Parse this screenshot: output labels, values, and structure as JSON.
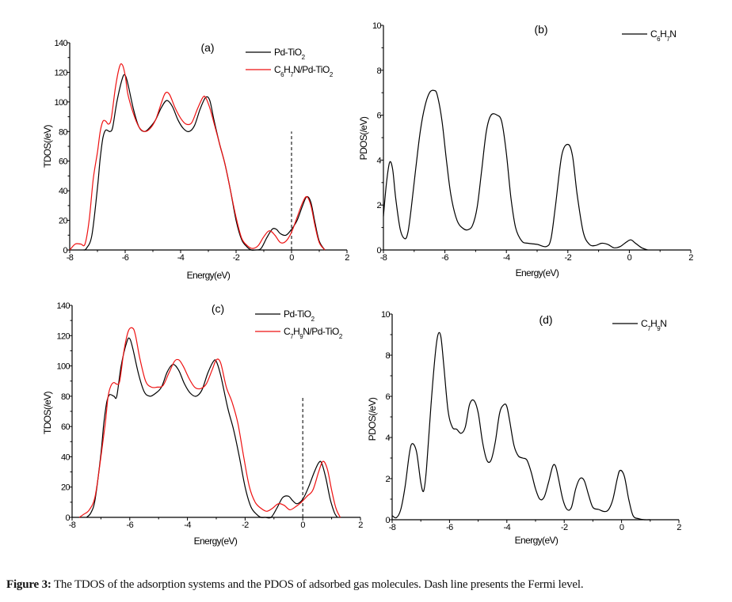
{
  "caption": {
    "label": "Figure 3:",
    "text": " The TDOS of the adsorption systems and the PDOS of adsorbed gas molecules. Dash line presents the Fermi level."
  },
  "chart_data": [
    {
      "id": "a",
      "type": "line",
      "panel_label": "(a)",
      "xlabel": "Energy(eV)",
      "ylabel": "TDOS(/eV)",
      "xlim": [
        -8,
        2
      ],
      "ylim": [
        0,
        140
      ],
      "xticks": [
        -8,
        -6,
        -4,
        -2,
        0,
        2
      ],
      "yticks": [
        0,
        20,
        40,
        60,
        80,
        100,
        120,
        140
      ],
      "fermi_level": {
        "x": 0,
        "y_top": 80
      },
      "legend_position": "top-right",
      "series": [
        {
          "name": "Pd-TiO2",
          "legend_html": [
            "Pd-TiO",
            "2"
          ],
          "color": "#000000",
          "x": [
            -7.5,
            -7.4,
            -7.2,
            -7.0,
            -6.9,
            -6.8,
            -6.7,
            -6.55,
            -6.45,
            -6.3,
            -6.1,
            -6.0,
            -5.9,
            -5.7,
            -5.5,
            -5.3,
            -5.1,
            -4.9,
            -4.7,
            -4.5,
            -4.3,
            -4.1,
            -3.9,
            -3.7,
            -3.5,
            -3.3,
            -3.1,
            -2.95,
            -2.8,
            -2.6,
            -2.4,
            -2.2,
            -2.0,
            -1.8,
            -1.6,
            -1.45,
            -1.3,
            -1.1,
            -0.9,
            -0.7,
            -0.55,
            -0.4,
            -0.2,
            0.0,
            0.2,
            0.4,
            0.55,
            0.7,
            0.85,
            1.0,
            1.2
          ],
          "y": [
            0,
            1,
            10,
            42,
            62,
            76,
            81,
            80,
            83,
            100,
            116,
            118,
            112,
            95,
            83,
            80,
            83,
            88,
            96,
            101,
            97,
            88,
            82,
            80,
            84,
            95,
            103,
            101,
            88,
            72,
            58,
            40,
            20,
            7,
            2,
            0,
            0,
            1,
            8,
            14,
            14,
            11,
            10,
            14,
            20,
            30,
            36,
            32,
            18,
            6,
            0
          ]
        },
        {
          "name": "C6H7N/Pd-TiO2",
          "legend_html": [
            "C",
            "6",
            "H",
            "7",
            "N/Pd-TiO",
            "2"
          ],
          "color": "#ee1111",
          "x": [
            -8.0,
            -7.8,
            -7.6,
            -7.45,
            -7.3,
            -7.15,
            -7.0,
            -6.9,
            -6.8,
            -6.7,
            -6.6,
            -6.5,
            -6.35,
            -6.2,
            -6.1,
            -6.0,
            -5.9,
            -5.7,
            -5.5,
            -5.3,
            -5.1,
            -4.9,
            -4.7,
            -4.55,
            -4.4,
            -4.2,
            -4.0,
            -3.8,
            -3.6,
            -3.4,
            -3.2,
            -3.1,
            -2.95,
            -2.8,
            -2.6,
            -2.4,
            -2.2,
            -2.0,
            -1.8,
            -1.6,
            -1.4,
            -1.2,
            -1.0,
            -0.8,
            -0.6,
            -0.4,
            -0.2,
            0.0,
            0.2,
            0.4,
            0.55,
            0.7,
            0.85,
            1.0,
            1.2
          ],
          "y": [
            0,
            4,
            4,
            4,
            20,
            48,
            66,
            80,
            87,
            87,
            85,
            89,
            110,
            124,
            125,
            118,
            105,
            92,
            83,
            80,
            82,
            88,
            99,
            106,
            105,
            96,
            89,
            85,
            86,
            95,
            103,
            103,
            96,
            86,
            72,
            58,
            40,
            22,
            8,
            3,
            1,
            3,
            9,
            13,
            10,
            5,
            6,
            12,
            22,
            32,
            36,
            30,
            16,
            5,
            0
          ]
        }
      ]
    },
    {
      "id": "b",
      "type": "line",
      "panel_label": "(b)",
      "xlabel": "Energy(eV)",
      "ylabel": "PDOS(/eV)",
      "xlim": [
        -8,
        2
      ],
      "ylim": [
        0,
        10
      ],
      "xticks": [
        -8,
        -6,
        -4,
        -2,
        0,
        2
      ],
      "yticks": [
        0,
        2,
        4,
        6,
        8,
        10
      ],
      "legend_position": "top-right",
      "series": [
        {
          "name": "C6H7N",
          "legend_html": [
            "C",
            "6",
            "H",
            "7",
            "N"
          ],
          "color": "#000000",
          "x": [
            -8.0,
            -7.9,
            -7.8,
            -7.7,
            -7.6,
            -7.45,
            -7.3,
            -7.2,
            -7.1,
            -6.95,
            -6.8,
            -6.65,
            -6.5,
            -6.35,
            -6.25,
            -6.1,
            -5.95,
            -5.8,
            -5.6,
            -5.4,
            -5.25,
            -5.1,
            -4.95,
            -4.8,
            -4.65,
            -4.5,
            -4.3,
            -4.15,
            -4.0,
            -3.85,
            -3.7,
            -3.5,
            -3.3,
            -3.0,
            -2.7,
            -2.55,
            -2.4,
            -2.2,
            -2.0,
            -1.85,
            -1.7,
            -1.5,
            -1.3,
            -1.1,
            -0.9,
            -0.7,
            -0.5,
            -0.3,
            -0.1,
            0.05,
            0.2,
            0.4,
            0.6
          ],
          "y": [
            1.5,
            3.0,
            3.9,
            3.6,
            2.3,
            0.9,
            0.5,
            0.8,
            1.8,
            3.6,
            5.3,
            6.4,
            7.0,
            7.1,
            6.9,
            5.8,
            4.0,
            2.4,
            1.3,
            0.95,
            0.9,
            1.1,
            1.9,
            3.6,
            5.3,
            6.0,
            6.0,
            5.7,
            4.3,
            2.3,
            1.0,
            0.4,
            0.3,
            0.25,
            0.15,
            0.5,
            2.0,
            4.2,
            4.7,
            4.2,
            2.5,
            0.8,
            0.25,
            0.2,
            0.3,
            0.25,
            0.1,
            0.15,
            0.35,
            0.45,
            0.3,
            0.1,
            0.0
          ]
        }
      ]
    },
    {
      "id": "c",
      "type": "line",
      "panel_label": "(c)",
      "xlabel": "Energy(eV)",
      "ylabel": "TDOS(/eV)",
      "xlim": [
        -8,
        2
      ],
      "ylim": [
        0,
        140
      ],
      "xticks": [
        -8,
        -6,
        -4,
        -2,
        0,
        2
      ],
      "yticks": [
        0,
        20,
        40,
        60,
        80,
        100,
        120,
        140
      ],
      "fermi_level": {
        "x": 0,
        "y_top": 80
      },
      "legend_position": "top-right",
      "series": [
        {
          "name": "Pd-TiO2",
          "legend_html": [
            "Pd-TiO",
            "2"
          ],
          "color": "#000000",
          "x": [
            -7.5,
            -7.35,
            -7.2,
            -7.0,
            -6.9,
            -6.8,
            -6.7,
            -6.55,
            -6.45,
            -6.3,
            -6.1,
            -6.0,
            -5.9,
            -5.7,
            -5.5,
            -5.3,
            -5.1,
            -4.9,
            -4.7,
            -4.5,
            -4.3,
            -4.1,
            -3.9,
            -3.7,
            -3.5,
            -3.3,
            -3.1,
            -3.0,
            -2.85,
            -2.6,
            -2.4,
            -2.2,
            -2.0,
            -1.8,
            -1.6,
            -1.45,
            -1.3,
            -1.1,
            -0.9,
            -0.7,
            -0.5,
            -0.35,
            -0.2,
            0.0,
            0.2,
            0.4,
            0.55,
            0.65,
            0.8,
            0.95,
            1.1,
            1.2
          ],
          "y": [
            0,
            3,
            12,
            42,
            62,
            76,
            81,
            80,
            80,
            100,
            116,
            118,
            112,
            95,
            83,
            80,
            82,
            86,
            96,
            101,
            97,
            88,
            82,
            80,
            84,
            95,
            103,
            103,
            94,
            72,
            58,
            40,
            20,
            7,
            2,
            0,
            0,
            0,
            6,
            13,
            14,
            11,
            9,
            12,
            20,
            30,
            36,
            36,
            26,
            12,
            3,
            0
          ]
        },
        {
          "name": "C7H9N/Pd-TiO2",
          "legend_html": [
            "C",
            "7",
            "H",
            "9",
            "N/Pd-TiO",
            "2"
          ],
          "color": "#ee1111",
          "x": [
            -7.75,
            -7.6,
            -7.4,
            -7.2,
            -7.0,
            -6.85,
            -6.75,
            -6.65,
            -6.55,
            -6.45,
            -6.35,
            -6.2,
            -6.05,
            -5.9,
            -5.8,
            -5.65,
            -5.45,
            -5.25,
            -5.05,
            -4.85,
            -4.65,
            -4.45,
            -4.3,
            -4.15,
            -3.95,
            -3.75,
            -3.55,
            -3.35,
            -3.15,
            -3.0,
            -2.85,
            -2.65,
            -2.45,
            -2.25,
            -2.05,
            -1.85,
            -1.65,
            -1.45,
            -1.25,
            -1.05,
            -0.85,
            -0.65,
            -0.45,
            -0.25,
            -0.05,
            0.15,
            0.35,
            0.55,
            0.7,
            0.85,
            1.0,
            1.15,
            1.3
          ],
          "y": [
            0,
            2,
            5,
            14,
            40,
            62,
            80,
            87,
            89,
            88,
            90,
            110,
            123,
            125,
            120,
            105,
            90,
            86,
            86,
            87,
            95,
            103,
            104,
            100,
            92,
            86,
            85,
            88,
            97,
            104,
            102,
            86,
            76,
            62,
            40,
            20,
            10,
            6,
            4,
            6,
            9,
            8,
            5,
            7,
            10,
            14,
            18,
            30,
            37,
            32,
            18,
            6,
            0
          ]
        }
      ]
    },
    {
      "id": "d",
      "type": "line",
      "panel_label": "(d)",
      "xlabel": "Energy(eV)",
      "ylabel": "PDOS(/eV)",
      "xlim": [
        -8,
        2
      ],
      "ylim": [
        0,
        10
      ],
      "xticks": [
        -8,
        -6,
        -4,
        -2,
        0,
        2
      ],
      "yticks": [
        0,
        2,
        4,
        6,
        8,
        10
      ],
      "legend_position": "top-right",
      "series": [
        {
          "name": "C7H9N",
          "legend_html": [
            "C",
            "7",
            "H",
            "9",
            "N"
          ],
          "color": "#000000",
          "x": [
            -8.0,
            -7.85,
            -7.7,
            -7.55,
            -7.4,
            -7.3,
            -7.15,
            -7.0,
            -6.9,
            -6.8,
            -6.65,
            -6.5,
            -6.4,
            -6.3,
            -6.2,
            -6.05,
            -5.9,
            -5.75,
            -5.6,
            -5.45,
            -5.3,
            -5.15,
            -5.0,
            -4.85,
            -4.7,
            -4.55,
            -4.4,
            -4.25,
            -4.1,
            -4.0,
            -3.9,
            -3.75,
            -3.6,
            -3.45,
            -3.3,
            -3.15,
            -3.0,
            -2.85,
            -2.7,
            -2.55,
            -2.4,
            -2.3,
            -2.2,
            -2.05,
            -1.9,
            -1.75,
            -1.6,
            -1.45,
            -1.3,
            -1.15,
            -1.0,
            -0.8,
            -0.6,
            -0.45,
            -0.3,
            -0.15,
            -0.05,
            0.1,
            0.25,
            0.4,
            0.6,
            0.8,
            1.0
          ],
          "y": [
            0.2,
            0.1,
            0.5,
            1.6,
            3.2,
            3.7,
            3.3,
            1.8,
            1.4,
            2.5,
            5.5,
            8.0,
            9.0,
            8.9,
            7.5,
            5.3,
            4.5,
            4.4,
            4.2,
            4.5,
            5.6,
            5.8,
            5.2,
            3.8,
            2.9,
            2.9,
            3.8,
            5.2,
            5.6,
            5.5,
            4.8,
            3.6,
            3.1,
            3.0,
            2.9,
            2.3,
            1.5,
            1.0,
            1.1,
            1.8,
            2.6,
            2.6,
            2.0,
            1.0,
            0.5,
            0.6,
            1.5,
            2.0,
            1.9,
            1.2,
            0.6,
            0.5,
            0.4,
            0.5,
            1.0,
            2.0,
            2.4,
            2.1,
            1.0,
            0.2,
            0.05,
            0.0,
            0.0
          ]
        }
      ]
    }
  ]
}
